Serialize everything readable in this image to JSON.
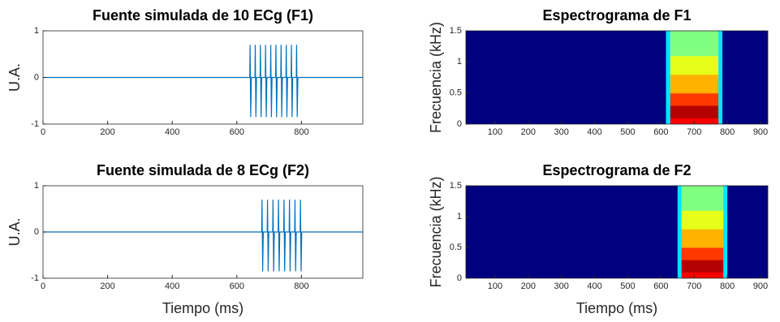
{
  "chart_data": [
    {
      "type": "line",
      "title": "Fuente simulada de 10 ECg (F1)",
      "ylabel": "U.A.",
      "xlim": [
        0,
        990
      ],
      "ylim": [
        -1,
        1
      ],
      "xticks": [
        0,
        200,
        400,
        600,
        800
      ],
      "yticks": [
        -1,
        0,
        1
      ],
      "color": "#0072bd",
      "x": [
        0,
        640,
        641,
        643,
        645,
        656,
        657,
        659,
        661,
        672,
        673,
        675,
        677,
        688,
        689,
        691,
        693,
        704,
        705,
        707,
        709,
        720,
        721,
        723,
        725,
        736,
        737,
        739,
        741,
        752,
        753,
        755,
        757,
        768,
        769,
        771,
        773,
        784,
        785,
        787,
        789,
        990
      ],
      "values": [
        0,
        0,
        0.7,
        -0.85,
        0,
        0,
        0.7,
        -0.85,
        0,
        0,
        0.7,
        -0.85,
        0,
        0,
        0.7,
        -0.85,
        0,
        0,
        0.7,
        -0.85,
        0,
        0,
        0.7,
        -0.85,
        0,
        0,
        0.7,
        -0.85,
        0,
        0,
        0.7,
        -0.85,
        0,
        0,
        0.7,
        -0.85,
        0,
        0,
        0.7,
        -0.85,
        0,
        0
      ]
    },
    {
      "type": "heatmap",
      "title": "Espectrograma de F1",
      "ylabel": "Frecuencia (kHz)",
      "xlim": [
        12,
        922
      ],
      "ylim": [
        0,
        1.5
      ],
      "xticks": [
        100,
        200,
        300,
        400,
        500,
        600,
        700,
        800,
        900
      ],
      "yticks": [
        0,
        0.5,
        1,
        1.5
      ],
      "colormap": "jet",
      "zlim": [
        0,
        1
      ],
      "background": "#00008f",
      "x_edges": [
        12,
        615,
        628,
        650,
        672,
        694,
        716,
        738,
        760,
        773,
        785,
        922
      ],
      "y_edges": [
        0,
        0.1,
        0.3,
        0.5,
        0.8,
        1.1,
        1.5
      ],
      "values": [
        [
          0,
          0.35,
          0.88,
          0.88,
          0.88,
          0.88,
          0.88,
          0.88,
          0.88,
          0.35,
          0
        ],
        [
          0,
          0.35,
          0.95,
          0.95,
          0.95,
          0.95,
          0.95,
          0.95,
          0.95,
          0.35,
          0
        ],
        [
          0,
          0.35,
          0.82,
          0.82,
          0.82,
          0.82,
          0.82,
          0.82,
          0.82,
          0.35,
          0
        ],
        [
          0,
          0.35,
          0.7,
          0.7,
          0.7,
          0.7,
          0.7,
          0.7,
          0.7,
          0.35,
          0
        ],
        [
          0,
          0.35,
          0.6,
          0.6,
          0.6,
          0.6,
          0.6,
          0.6,
          0.6,
          0.35,
          0
        ],
        [
          0,
          0.35,
          0.5,
          0.5,
          0.5,
          0.5,
          0.5,
          0.5,
          0.5,
          0.35,
          0
        ]
      ]
    },
    {
      "type": "line",
      "title": "Fuente simulada de 8 ECg (F2)",
      "ylabel": "U.A.",
      "xlabel": "Tiempo (ms)",
      "xlim": [
        0,
        990
      ],
      "ylim": [
        -1,
        1
      ],
      "xticks": [
        0,
        200,
        400,
        600,
        800
      ],
      "yticks": [
        -1,
        0,
        1
      ],
      "color": "#0072bd",
      "x": [
        0,
        677,
        678,
        680,
        682,
        694,
        695,
        697,
        699,
        711,
        712,
        714,
        716,
        728,
        729,
        731,
        733,
        745,
        746,
        748,
        750,
        762,
        763,
        765,
        767,
        779,
        780,
        782,
        784,
        796,
        797,
        799,
        801,
        990
      ],
      "values": [
        0,
        0,
        0.7,
        -0.85,
        0,
        0,
        0.7,
        -0.85,
        0,
        0,
        0.7,
        -0.85,
        0,
        0,
        0.7,
        -0.85,
        0,
        0,
        0.7,
        -0.85,
        0,
        0,
        0.7,
        -0.85,
        0,
        0,
        0.7,
        -0.85,
        0,
        0,
        0.7,
        -0.85,
        0,
        0
      ]
    },
    {
      "type": "heatmap",
      "title": "Espectrograma de F2",
      "ylabel": "Frecuencia (kHz)",
      "xlabel": "Tiempo (ms)",
      "xlim": [
        12,
        922
      ],
      "ylim": [
        0,
        1.5
      ],
      "xticks": [
        100,
        200,
        300,
        400,
        500,
        600,
        700,
        800,
        900
      ],
      "yticks": [
        0,
        0.5,
        1,
        1.5
      ],
      "colormap": "jet",
      "zlim": [
        0,
        1
      ],
      "background": "#00008f",
      "x_edges": [
        12,
        650,
        662,
        683,
        704,
        725,
        746,
        767,
        788,
        800,
        922
      ],
      "y_edges": [
        0,
        0.1,
        0.3,
        0.5,
        0.8,
        1.1,
        1.5
      ],
      "values": [
        [
          0,
          0.35,
          0.88,
          0.88,
          0.88,
          0.88,
          0.88,
          0.88,
          0.35,
          0
        ],
        [
          0,
          0.35,
          0.95,
          0.95,
          0.95,
          0.95,
          0.95,
          0.95,
          0.35,
          0
        ],
        [
          0,
          0.35,
          0.82,
          0.82,
          0.82,
          0.82,
          0.82,
          0.82,
          0.35,
          0
        ],
        [
          0,
          0.35,
          0.7,
          0.7,
          0.7,
          0.7,
          0.7,
          0.7,
          0.35,
          0
        ],
        [
          0,
          0.35,
          0.6,
          0.6,
          0.6,
          0.6,
          0.6,
          0.6,
          0.35,
          0
        ],
        [
          0,
          0.35,
          0.5,
          0.5,
          0.5,
          0.5,
          0.5,
          0.5,
          0.35,
          0
        ]
      ]
    }
  ]
}
